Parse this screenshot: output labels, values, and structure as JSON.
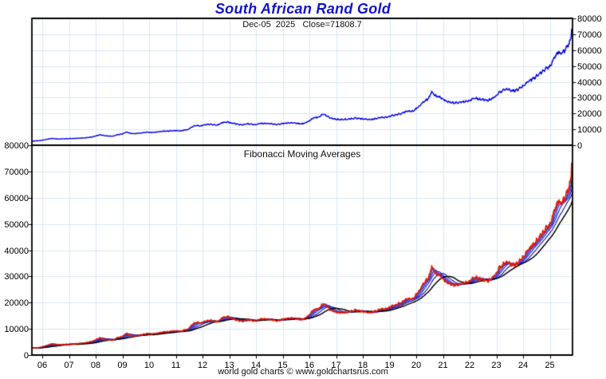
{
  "header": {
    "title": "South African Rand Gold"
  },
  "footer": {
    "text": "world gold charts © www.goldchartsrus.com"
  },
  "colors": {
    "title": "#1414cc",
    "grid": "#dce7f5",
    "frame": "#000000",
    "top_line": "#0202e8",
    "price_line": "#ee1507",
    "background": "#ffffff"
  },
  "chart_data": [
    {
      "type": "line",
      "panel": "top",
      "title": "South African Rand Gold",
      "subtitle": "Dec-05  2025   Close=71808.7",
      "close_value": 71808.7,
      "close_date": "Dec-05 2025",
      "ylim": [
        0,
        80000
      ],
      "yticks": [
        0,
        10000,
        20000,
        30000,
        40000,
        50000,
        60000,
        70000,
        80000
      ],
      "ytick_side": "right",
      "xlim": [
        2005.6,
        2025.87
      ],
      "xtick_labels": [
        "06",
        "07",
        "08",
        "09",
        "10",
        "11",
        "12",
        "13",
        "14",
        "15",
        "16",
        "17",
        "18",
        "19",
        "20",
        "21",
        "22",
        "23",
        "24",
        "25"
      ],
      "xtick_years": [
        2006,
        2007,
        2008,
        2009,
        2010,
        2011,
        2012,
        2013,
        2014,
        2015,
        2016,
        2017,
        2018,
        2019,
        2020,
        2021,
        2022,
        2023,
        2024,
        2025
      ],
      "grid": true,
      "series": [
        {
          "name": "zar-gold-close",
          "color": "#0202e8",
          "x": [
            2005.62,
            2005.85,
            2006.0,
            2006.35,
            2006.6,
            2006.9,
            2007.2,
            2007.6,
            2007.9,
            2008.15,
            2008.4,
            2008.65,
            2008.8,
            2009.0,
            2009.15,
            2009.35,
            2009.6,
            2009.9,
            2010.1,
            2010.4,
            2010.7,
            2010.95,
            2011.2,
            2011.45,
            2011.65,
            2011.78,
            2011.9,
            2012.1,
            2012.3,
            2012.55,
            2012.75,
            2012.95,
            2013.1,
            2013.3,
            2013.5,
            2013.7,
            2013.95,
            2014.2,
            2014.5,
            2014.8,
            2015.1,
            2015.4,
            2015.7,
            2015.95,
            2016.15,
            2016.35,
            2016.5,
            2016.65,
            2016.8,
            2017.0,
            2017.25,
            2017.5,
            2017.75,
            2018.0,
            2018.3,
            2018.6,
            2018.85,
            2019.1,
            2019.4,
            2019.65,
            2019.9,
            2020.1,
            2020.3,
            2020.45,
            2020.58,
            2020.72,
            2020.9,
            2021.1,
            2021.3,
            2021.55,
            2021.8,
            2022.0,
            2022.2,
            2022.45,
            2022.7,
            2022.9,
            2023.1,
            2023.35,
            2023.6,
            2023.8,
            2024.0,
            2024.2,
            2024.45,
            2024.65,
            2024.85,
            2025.0,
            2025.15,
            2025.3,
            2025.45,
            2025.6,
            2025.74,
            2025.79,
            2025.82,
            2025.85
          ],
          "y": [
            2600,
            2800,
            3150,
            4300,
            3900,
            4100,
            4250,
            4650,
            5300,
            6600,
            5900,
            5700,
            6600,
            7100,
            8300,
            7300,
            7500,
            8200,
            8000,
            8600,
            8900,
            9200,
            9100,
            9900,
            11900,
            12600,
            12100,
            12900,
            13100,
            12700,
            14300,
            14600,
            14000,
            13300,
            12800,
            13600,
            12900,
            13800,
            13600,
            13100,
            13900,
            14100,
            13400,
            14800,
            17200,
            17900,
            19600,
            18600,
            17100,
            16400,
            16100,
            16600,
            17100,
            16600,
            16100,
            17300,
            17600,
            18600,
            19800,
            21300,
            21600,
            24500,
            27800,
            29300,
            33600,
            31200,
            30300,
            28100,
            26700,
            26900,
            27600,
            28300,
            29800,
            28700,
            28300,
            29900,
            33200,
            35600,
            34300,
            34900,
            37400,
            40300,
            42800,
            45400,
            48300,
            49800,
            54500,
            58700,
            58100,
            60400,
            64500,
            67800,
            73600,
            71809
          ]
        }
      ]
    },
    {
      "type": "line",
      "panel": "bottom",
      "title": "Fibonacci Moving Averages",
      "ylim": [
        0,
        80000
      ],
      "yticks": [
        0,
        10000,
        20000,
        30000,
        40000,
        50000,
        60000,
        70000,
        80000
      ],
      "ytick_side": "left",
      "grid": true,
      "price_series_ref": "zar-gold-close",
      "price_color": "#ee1507",
      "moving_averages": [
        {
          "name": "fib-ma-21",
          "days": 21,
          "color": "#1d7a3c",
          "width": 1.1
        },
        {
          "name": "fib-ma-34",
          "days": 34,
          "color": "#2b2bff",
          "width": 1.1
        },
        {
          "name": "fib-ma-55",
          "days": 55,
          "color": "#1d1de0",
          "width": 1.1
        },
        {
          "name": "fib-ma-89",
          "days": 89,
          "color": "#1414c8",
          "width": 1.1
        },
        {
          "name": "fib-ma-144",
          "days": 144,
          "color": "#0a0aa8",
          "width": 1.1
        },
        {
          "name": "fib-ma-233",
          "days": 233,
          "color": "#000000",
          "width": 1.5
        }
      ]
    }
  ]
}
